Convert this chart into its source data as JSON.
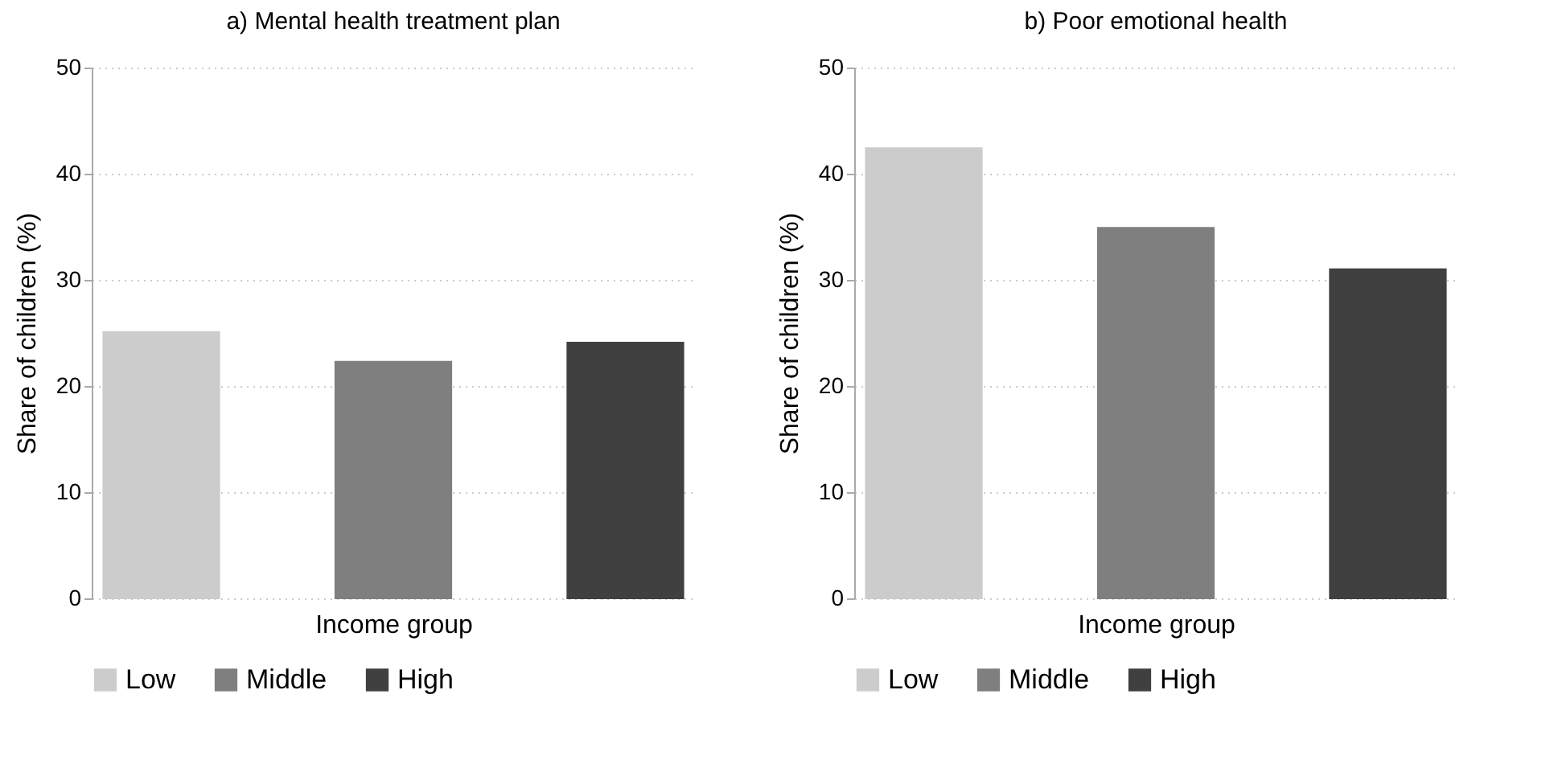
{
  "chart_data": [
    {
      "type": "bar",
      "title": "a) Mental health treatment plan",
      "xlabel": "Income group",
      "ylabel": "Share of children (%)",
      "categories": [
        null
      ],
      "series": [
        {
          "name": "Low",
          "color": "#cccccc",
          "values": [
            25.1
          ]
        },
        {
          "name": "Middle",
          "color": "#7f7f7f",
          "values": [
            22.3
          ]
        },
        {
          "name": "High",
          "color": "#404040",
          "values": [
            24.1
          ]
        }
      ],
      "ylim": [
        0,
        50
      ],
      "yticks": [
        0,
        10,
        20,
        30,
        40,
        50
      ],
      "grid": "y",
      "legend": "bottom"
    },
    {
      "type": "bar",
      "title": "b) Poor emotional health",
      "xlabel": "Income group",
      "ylabel": "Share of children (%)",
      "categories": [
        null
      ],
      "series": [
        {
          "name": "Low",
          "color": "#cccccc",
          "values": [
            42.4
          ]
        },
        {
          "name": "Middle",
          "color": "#7f7f7f",
          "values": [
            34.9
          ]
        },
        {
          "name": "High",
          "color": "#404040",
          "values": [
            31.0
          ]
        }
      ],
      "ylim": [
        0,
        50
      ],
      "yticks": [
        0,
        10,
        20,
        30,
        40,
        50
      ],
      "grid": "y",
      "legend": "bottom"
    }
  ]
}
